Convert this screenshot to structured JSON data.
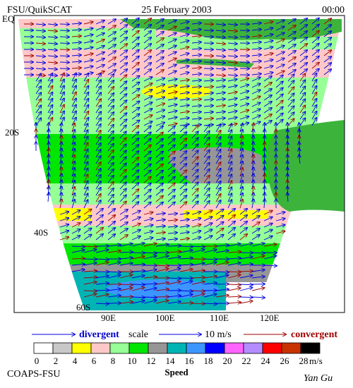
{
  "header": {
    "title": "FSU/QuikSCAT",
    "date": "25 February 2003",
    "time": "00:00"
  },
  "map": {
    "lat_labels": [
      "EQ",
      "20S",
      "40S",
      "60S"
    ],
    "lon_labels": [
      "90E",
      "100E",
      "110E",
      "120E"
    ]
  },
  "legend": {
    "divergent": "divergent",
    "scale": "scale",
    "scale_value": "10 m/s",
    "convergent": "convergent"
  },
  "colorbar": {
    "ticks": [
      0,
      2,
      4,
      6,
      8,
      10,
      12,
      14,
      16,
      18,
      20,
      22,
      24,
      26,
      28
    ],
    "colors": [
      "#ffffff",
      "#c8c8c8",
      "#ffff00",
      "#ffc8c8",
      "#96ff96",
      "#00e600",
      "#969696",
      "#00b4b4",
      "#3c96ff",
      "#0000ff",
      "#ff64ff",
      "#b48cff",
      "#ff0000",
      "#c83200",
      "#000000"
    ],
    "unit": "m/s",
    "label": "Speed"
  },
  "footer": {
    "credit": "COAPS-FSU",
    "author": "Yan Gu"
  }
}
